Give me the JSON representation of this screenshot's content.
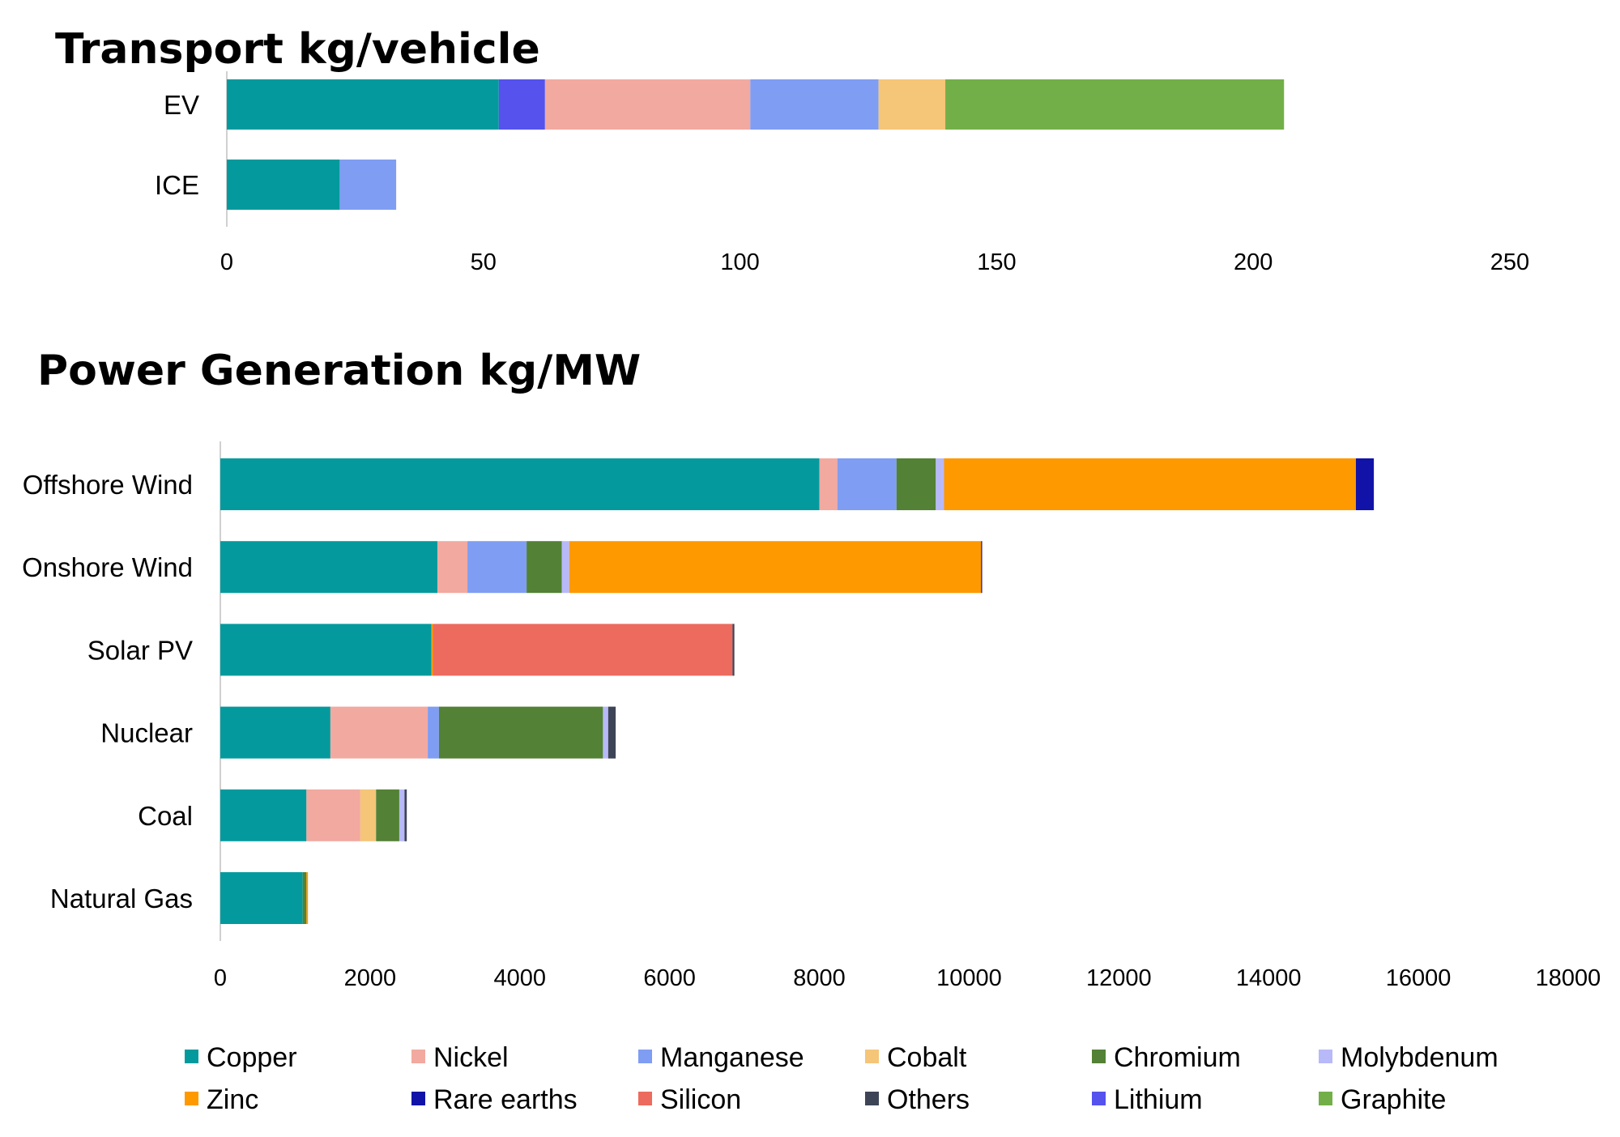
{
  "materials": [
    {
      "name": "Copper",
      "color": "#049A9D"
    },
    {
      "name": "Nickel",
      "color": "#F2A99F"
    },
    {
      "name": "Manganese",
      "color": "#7F9DF2"
    },
    {
      "name": "Cobalt",
      "color": "#F5C578"
    },
    {
      "name": "Chromium",
      "color": "#538135"
    },
    {
      "name": "Molybdenum",
      "color": "#B8B9F8"
    },
    {
      "name": "Zinc",
      "color": "#FF9900"
    },
    {
      "name": "Rare earths",
      "color": "#1113A8"
    },
    {
      "name": "Silicon",
      "color": "#EC6B5E"
    },
    {
      "name": "Others",
      "color": "#3D4456"
    },
    {
      "name": "Lithium",
      "color": "#5552EE"
    },
    {
      "name": "Graphite",
      "color": "#73AF48"
    }
  ],
  "chart_data": [
    {
      "type": "bar",
      "orientation": "horizontal",
      "stacked": true,
      "title": "Transport kg/vehicle",
      "categories": [
        "EV",
        "ICE"
      ],
      "xlim": [
        0,
        250
      ],
      "xticks": [
        "0",
        "50",
        "100",
        "150",
        "200",
        "250"
      ],
      "grid": false,
      "series": [
        {
          "name": "Copper",
          "values": [
            53,
            22
          ]
        },
        {
          "name": "Nickel",
          "values": [
            40,
            0
          ]
        },
        {
          "name": "Manganese",
          "values": [
            25,
            11
          ]
        },
        {
          "name": "Cobalt",
          "values": [
            13,
            0
          ]
        },
        {
          "name": "Chromium",
          "values": [
            0,
            0
          ]
        },
        {
          "name": "Molybdenum",
          "values": [
            0,
            0
          ]
        },
        {
          "name": "Zinc",
          "values": [
            0,
            0
          ]
        },
        {
          "name": "Rare earths",
          "values": [
            0,
            0
          ]
        },
        {
          "name": "Silicon",
          "values": [
            0,
            0
          ]
        },
        {
          "name": "Others",
          "values": [
            0,
            0
          ]
        },
        {
          "name": "Lithium",
          "values": [
            9,
            0
          ]
        },
        {
          "name": "Graphite",
          "values": [
            66,
            0
          ]
        }
      ],
      "stack_order": [
        "Copper",
        "Lithium",
        "Nickel",
        "Manganese",
        "Cobalt",
        "Graphite"
      ]
    },
    {
      "type": "bar",
      "orientation": "horizontal",
      "stacked": true,
      "title": "Power Generation kg/MW",
      "categories": [
        "Offshore Wind",
        "Onshore Wind",
        "Solar PV",
        "Nuclear",
        "Coal",
        "Natural Gas"
      ],
      "xlim": [
        0,
        18000
      ],
      "xticks": [
        "0",
        "2000",
        "4000",
        "6000",
        "8000",
        "10000",
        "12000",
        "14000",
        "16000",
        "18000"
      ],
      "grid": false,
      "legend": "bottom",
      "series": [
        {
          "name": "Copper",
          "values": [
            8000,
            2900,
            2820,
            1470,
            1150,
            1100
          ]
        },
        {
          "name": "Nickel",
          "values": [
            240,
            400,
            0,
            1300,
            720,
            0
          ]
        },
        {
          "name": "Manganese",
          "values": [
            790,
            790,
            0,
            150,
            0,
            0
          ]
        },
        {
          "name": "Cobalt",
          "values": [
            0,
            0,
            0,
            0,
            210,
            0
          ]
        },
        {
          "name": "Chromium",
          "values": [
            525,
            470,
            0,
            2190,
            310,
            50
          ]
        },
        {
          "name": "Molybdenum",
          "values": [
            110,
            100,
            0,
            70,
            70,
            0
          ]
        },
        {
          "name": "Zinc",
          "values": [
            5500,
            5500,
            20,
            0,
            0,
            20
          ]
        },
        {
          "name": "Rare earths",
          "values": [
            240,
            14,
            0,
            0,
            0,
            0
          ]
        },
        {
          "name": "Silicon",
          "values": [
            0,
            0,
            4000,
            0,
            0,
            0
          ]
        },
        {
          "name": "Others",
          "values": [
            0,
            0,
            25,
            100,
            30,
            0
          ]
        },
        {
          "name": "Lithium",
          "values": [
            0,
            0,
            0,
            0,
            0,
            0
          ]
        },
        {
          "name": "Graphite",
          "values": [
            0,
            0,
            0,
            0,
            0,
            0
          ]
        }
      ],
      "stack_order": [
        "Copper",
        "Nickel",
        "Manganese",
        "Cobalt",
        "Chromium",
        "Molybdenum",
        "Zinc",
        "Silicon",
        "Others",
        "Rare earths"
      ]
    }
  ]
}
